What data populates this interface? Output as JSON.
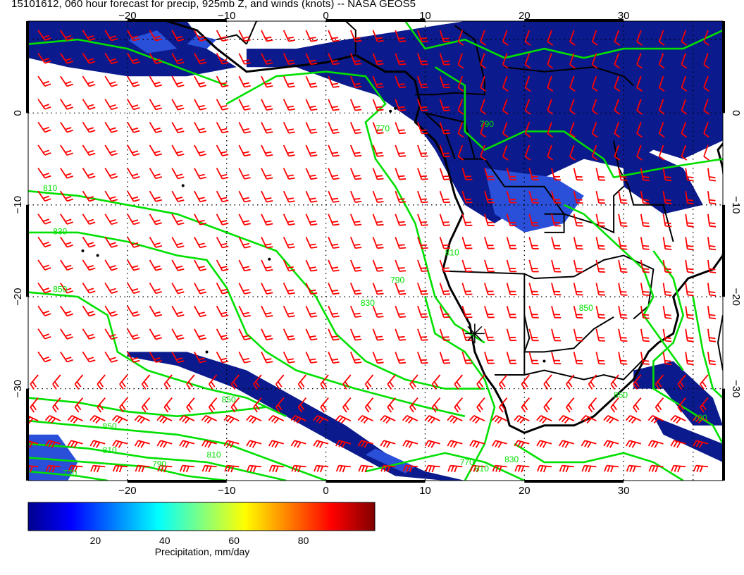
{
  "title": "15101612, 060 hour forecast for precip, 925mb Z, and winds (knots) -- NASA GEOS5",
  "map": {
    "lon_range": [
      -30,
      40
    ],
    "lat_range": [
      -40,
      10
    ],
    "lon_ticks": [
      {
        "value": -20,
        "label": "−20"
      },
      {
        "value": -10,
        "label": "−10"
      },
      {
        "value": 0,
        "label": "0"
      },
      {
        "value": 10,
        "label": "10"
      },
      {
        "value": 20,
        "label": "20"
      },
      {
        "value": 30,
        "label": "30"
      }
    ],
    "lat_ticks": [
      {
        "value": 0,
        "label": "0"
      },
      {
        "value": -10,
        "label": "−10"
      },
      {
        "value": -20,
        "label": "−20"
      },
      {
        "value": -30,
        "label": "−30"
      }
    ],
    "contour_labels": [
      {
        "text": "810",
        "lon": -28.5,
        "lat": -8.5
      },
      {
        "text": "830",
        "lon": -27.5,
        "lat": -13.2
      },
      {
        "text": "850",
        "lon": -27.5,
        "lat": -19.5
      },
      {
        "text": "850",
        "lon": -22.5,
        "lat": -34.4
      },
      {
        "text": "810",
        "lon": -22.5,
        "lat": -37.0
      },
      {
        "text": "790",
        "lon": -17.5,
        "lat": -38.5
      },
      {
        "text": "770",
        "lon": -26.5,
        "lat": -39.5
      },
      {
        "text": "810",
        "lon": -12,
        "lat": -37.5
      },
      {
        "text": "850",
        "lon": -10.5,
        "lat": -31.5
      },
      {
        "text": "830",
        "lon": 3.5,
        "lat": -21.0
      },
      {
        "text": "790",
        "lon": 6.5,
        "lat": -18.5
      },
      {
        "text": "770",
        "lon": 5,
        "lat": -2.0
      },
      {
        "text": "790",
        "lon": 15.5,
        "lat": -1.5
      },
      {
        "text": "810",
        "lon": 12,
        "lat": -15.5
      },
      {
        "text": "850",
        "lon": 25.5,
        "lat": -21.5
      },
      {
        "text": "850",
        "lon": 29,
        "lat": -31.0
      },
      {
        "text": "790",
        "lon": 37,
        "lat": -33.5
      },
      {
        "text": "770",
        "lon": 13.5,
        "lat": -38.3
      },
      {
        "text": "810",
        "lon": 15,
        "lat": -39.0
      },
      {
        "text": "830",
        "lon": 18,
        "lat": -38.0
      }
    ],
    "marker": {
      "type": "cross",
      "lon": 15,
      "lat": -24
    }
  },
  "colorbar": {
    "title": "Precipitation, mm/day",
    "range": [
      0,
      100
    ],
    "ticks": [
      {
        "value": 20,
        "label": "20"
      },
      {
        "value": 40,
        "label": "40"
      },
      {
        "value": 60,
        "label": "60"
      },
      {
        "value": 80,
        "label": "80"
      }
    ],
    "colors": [
      "#00008f",
      "#0000ff",
      "#0080ff",
      "#00ffff",
      "#80ff80",
      "#ffff00",
      "#ff8000",
      "#ff0000",
      "#800000"
    ]
  },
  "colors": {
    "wind_barbs": "#ff0000",
    "contours": "#00e000",
    "precip_dark": "#0b1a8c",
    "precip_mid": "#2a4fd8",
    "coastline": "#000000"
  }
}
